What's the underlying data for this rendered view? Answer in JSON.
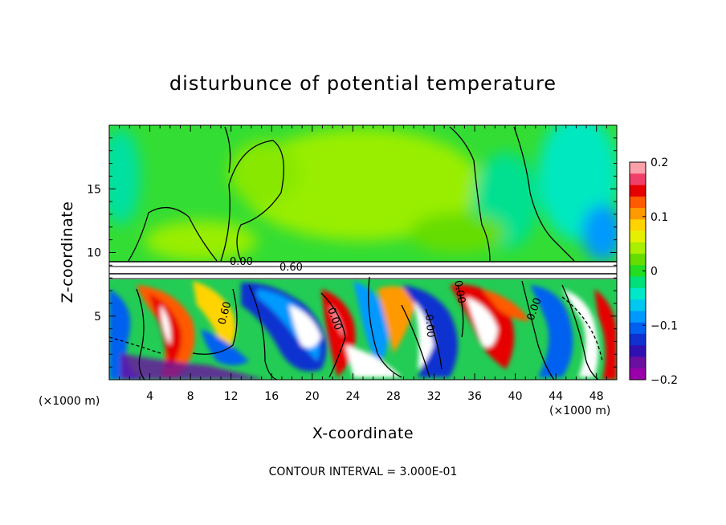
{
  "chart_data": {
    "type": "heatmap",
    "title": "disturbunce of potential temperature",
    "xlabel": "X-coordinate",
    "ylabel": "Z-coordinate",
    "x_unit_left": "(×1000 m)",
    "x_unit_right": "(×1000 m)",
    "xlim": [
      0,
      50
    ],
    "ylim": [
      0,
      20
    ],
    "x_ticks": [
      "4",
      "8",
      "12",
      "16",
      "20",
      "24",
      "28",
      "32",
      "36",
      "40",
      "44",
      "48"
    ],
    "y_ticks": [
      "5",
      "10",
      "15"
    ],
    "colorbar": {
      "range": [
        -0.2,
        0.2
      ],
      "tick_labels": [
        "0.2",
        "0.1",
        "0",
        "−0.1",
        "−0.2"
      ],
      "colors": [
        "#f9a0a8",
        "#f0406a",
        "#e60000",
        "#ff5a00",
        "#ff9900",
        "#ffd400",
        "#e6ef00",
        "#aaee00",
        "#66dd00",
        "#22dd22",
        "#00e07a",
        "#00e8c8",
        "#00c8ee",
        "#0099ff",
        "#0060f0",
        "#1030d0",
        "#3010b0",
        "#6a0fa0",
        "#9900aa"
      ]
    },
    "contour_labels": [
      "0.00",
      "0.60",
      "0.60",
      "0.00",
      "0.00",
      "0.00",
      "0.00"
    ],
    "contour_interval_note": "CONTOUR INTERVAL = 3.000E-01",
    "fields": {
      "upper_layer": "near-zero disturbance (green), 9–20 km",
      "cloud_layer_top_km": 9
    }
  }
}
